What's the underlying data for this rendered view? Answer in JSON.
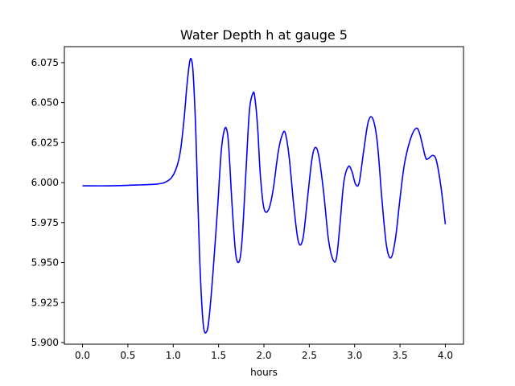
{
  "chart_data": {
    "type": "line",
    "title": "Water Depth h at gauge 5",
    "xlabel": "hours",
    "ylabel": "",
    "xlim": [
      -0.2,
      4.2
    ],
    "ylim": [
      5.899,
      6.085
    ],
    "xticks": [
      0.0,
      0.5,
      1.0,
      1.5,
      2.0,
      2.5,
      3.0,
      3.5,
      4.0
    ],
    "xtick_labels": [
      "0.0",
      "0.5",
      "1.0",
      "1.5",
      "2.0",
      "2.5",
      "3.0",
      "3.5",
      "4.0"
    ],
    "yticks": [
      5.9,
      5.925,
      5.95,
      5.975,
      6.0,
      6.025,
      6.05,
      6.075
    ],
    "ytick_labels": [
      "5.900",
      "5.925",
      "5.950",
      "5.975",
      "6.000",
      "6.025",
      "6.050",
      "6.075"
    ],
    "grid": false,
    "series": [
      {
        "color": "#0000ff",
        "x": [
          0.0,
          0.3,
          0.6,
          0.8,
          0.9,
          0.98,
          1.04,
          1.08,
          1.12,
          1.15,
          1.18,
          1.2,
          1.22,
          1.25,
          1.29,
          1.33,
          1.37,
          1.4,
          1.44,
          1.49,
          1.53,
          1.57,
          1.6,
          1.62,
          1.65,
          1.69,
          1.73,
          1.76,
          1.8,
          1.84,
          1.88,
          1.9,
          1.93,
          1.96,
          2.0,
          2.05,
          2.1,
          2.16,
          2.21,
          2.24,
          2.28,
          2.33,
          2.38,
          2.43,
          2.48,
          2.53,
          2.57,
          2.61,
          2.66,
          2.71,
          2.76,
          2.8,
          2.84,
          2.88,
          2.93,
          2.97,
          3.01,
          3.05,
          3.1,
          3.15,
          3.2,
          3.25,
          3.3,
          3.35,
          3.4,
          3.45,
          3.5,
          3.55,
          3.62,
          3.68,
          3.72,
          3.78,
          3.81,
          3.86,
          3.9,
          3.95,
          4.0
        ],
        "values": [
          5.998,
          5.998,
          5.9985,
          5.999,
          6.0,
          6.003,
          6.01,
          6.02,
          6.04,
          6.06,
          6.075,
          6.077,
          6.068,
          6.03,
          5.955,
          5.912,
          5.907,
          5.918,
          5.945,
          5.985,
          6.02,
          6.034,
          6.03,
          6.015,
          5.985,
          5.955,
          5.951,
          5.965,
          6.005,
          6.045,
          6.056,
          6.053,
          6.035,
          6.005,
          5.984,
          5.983,
          5.995,
          6.02,
          6.031,
          6.03,
          6.015,
          5.985,
          5.963,
          5.965,
          5.99,
          6.015,
          6.022,
          6.015,
          5.993,
          5.965,
          5.952,
          5.953,
          5.975,
          6.0,
          6.01,
          6.007,
          5.999,
          6.0,
          6.02,
          6.038,
          6.04,
          6.025,
          5.99,
          5.961,
          5.953,
          5.965,
          5.99,
          6.012,
          6.028,
          6.034,
          6.03,
          6.016,
          6.015,
          6.017,
          6.014,
          5.998,
          5.974
        ]
      }
    ]
  }
}
